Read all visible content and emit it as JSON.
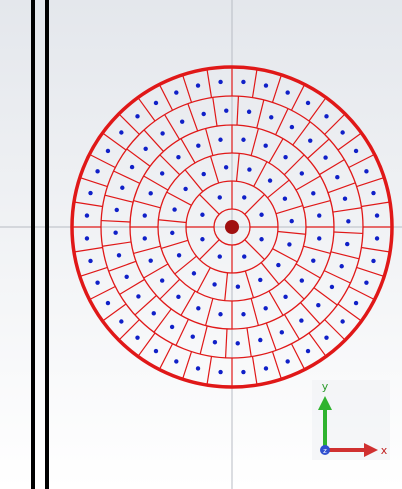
{
  "axes_widget": {
    "y_label": "y",
    "x_label": "x",
    "z_label": "z"
  }
}
